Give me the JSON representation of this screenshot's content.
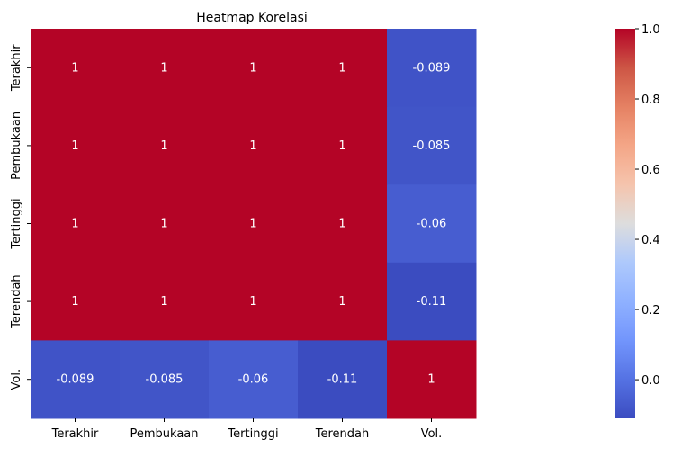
{
  "chart_data": {
    "type": "heatmap",
    "title": "Heatmap Korelasi",
    "x_categories": [
      "Terakhir",
      "Pembukaan",
      "Tertinggi",
      "Terendah",
      "Vol."
    ],
    "y_categories": [
      "Terakhir",
      "Pembukaan",
      "Tertinggi",
      "Terendah",
      "Vol."
    ],
    "values": [
      [
        1,
        1,
        1,
        1,
        -0.089
      ],
      [
        1,
        1,
        1,
        1,
        -0.085
      ],
      [
        1,
        1,
        1,
        1,
        -0.06
      ],
      [
        1,
        1,
        1,
        1,
        -0.11
      ],
      [
        -0.089,
        -0.085,
        -0.06,
        -0.11,
        1
      ]
    ],
    "annotations": [
      [
        "1",
        "1",
        "1",
        "1",
        "-0.089"
      ],
      [
        "1",
        "1",
        "1",
        "1",
        "-0.085"
      ],
      [
        "1",
        "1",
        "1",
        "1",
        "-0.06"
      ],
      [
        "1",
        "1",
        "1",
        "1",
        "-0.11"
      ],
      [
        "-0.089",
        "-0.085",
        "-0.06",
        "-0.11",
        "1"
      ]
    ],
    "colormap": "coolwarm",
    "vmin": -0.11,
    "vmax": 1,
    "colorbar_ticks": [
      {
        "value": 1.0,
        "label": "1.0"
      },
      {
        "value": 0.8,
        "label": "0.8"
      },
      {
        "value": 0.6,
        "label": "0.6"
      },
      {
        "value": 0.4,
        "label": "0.4"
      },
      {
        "value": 0.2,
        "label": "0.2"
      },
      {
        "value": 0.0,
        "label": "0.0"
      }
    ],
    "grid": false,
    "legend": "colorbar-right"
  }
}
